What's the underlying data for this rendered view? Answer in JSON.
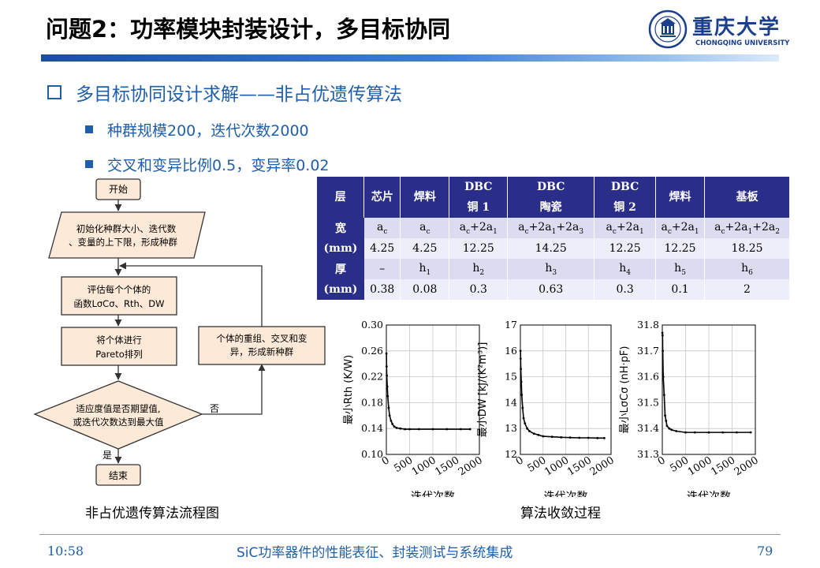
{
  "slide": {
    "title": "问题2：功率模块封装设计，多目标协同",
    "heading": "多目标协同设计求解——非占优遗传算法",
    "bullets": [
      "种群规模200，迭代次数2000",
      "交叉和变异比例0.5，变异率0.02"
    ]
  },
  "logo": {
    "name_cn": "重庆大学",
    "name_en": "CHONGQING UNIVERSITY",
    "emblem_text": "重 庆 大 学"
  },
  "table": {
    "header": [
      "层",
      "芯片",
      "焊料",
      "DBC 铜 1",
      "DBC 陶瓷",
      "DBC 铜 2",
      "焊料",
      "基板"
    ],
    "header_lines": [
      [
        "层"
      ],
      [
        "芯片"
      ],
      [
        "焊料"
      ],
      [
        "DBC",
        "铜 1"
      ],
      [
        "DBC",
        "陶瓷"
      ],
      [
        "DBC",
        "铜 2"
      ],
      [
        "焊料"
      ],
      [
        "基板"
      ]
    ],
    "width_label": [
      "宽",
      "(mm)"
    ],
    "width_formula": [
      "a_c",
      "a_c",
      "a_c+2a_1",
      "a_c+2a_1+2a_3",
      "a_c+2a_1",
      "a_c+2a_1",
      "a_c+2a_1+2a_2"
    ],
    "width_value": [
      "4.25",
      "4.25",
      "12.25",
      "14.25",
      "12.25",
      "12.25",
      "18.25"
    ],
    "thick_label": [
      "厚",
      "(mm)"
    ],
    "thick_symbol": [
      "–",
      "h_1",
      "h_2",
      "h_3",
      "h_4",
      "h_5",
      "h_6"
    ],
    "thick_value": [
      "0.38",
      "0.08",
      "0.3",
      "0.63",
      "0.3",
      "0.1",
      "2"
    ]
  },
  "flowchart": {
    "start": "开始",
    "init": [
      "初始化种群大小、迭代数",
      "、变量的上下限，形成种群"
    ],
    "eval": [
      "评估每个个体的",
      "函数LσCσ、Rth、DW"
    ],
    "sort": [
      "将个体进行",
      "Pareto排列"
    ],
    "decision": [
      "适应度值是否期望值,",
      "或迭代次数达到最大值"
    ],
    "no": "否",
    "yes": "是",
    "regen": [
      "个体的重组、交叉和变",
      "异，形成新种群"
    ],
    "end": "结束",
    "caption": "非占优遗传算法流程图"
  },
  "convergence_caption": "算法收敛过程",
  "chart_data": [
    {
      "type": "scatter",
      "xlabel": "迭代次数",
      "ylabel": "最小R_th (K/W)",
      "xlim": [
        0,
        2000
      ],
      "ylim": [
        0.1,
        0.3
      ],
      "xticks": [
        0,
        500,
        1000,
        1500,
        2000
      ],
      "yticks": [
        0.1,
        0.14,
        0.18,
        0.22,
        0.26,
        0.3
      ],
      "ytick_labels": [
        "0.10",
        "0.14",
        "0.18",
        "0.22",
        "0.26",
        "0.30"
      ],
      "grid": true,
      "x": [
        2,
        5,
        10,
        20,
        30,
        50,
        70,
        100,
        130,
        170,
        220,
        300,
        400,
        500,
        700,
        1000,
        1300,
        1600,
        1800
      ],
      "y": [
        0.256,
        0.236,
        0.222,
        0.205,
        0.19,
        0.172,
        0.16,
        0.152,
        0.147,
        0.143,
        0.141,
        0.14,
        0.139,
        0.139,
        0.139,
        0.139,
        0.139,
        0.139,
        0.139
      ]
    },
    {
      "type": "scatter",
      "xlabel": "迭代次数",
      "ylabel": "最小D_W [kJ/(K²m³)]",
      "xlim": [
        0,
        2000
      ],
      "ylim": [
        12,
        17
      ],
      "xticks": [
        0,
        500,
        1000,
        1500,
        2000
      ],
      "yticks": [
        12,
        13,
        14,
        15,
        16,
        17
      ],
      "ytick_labels": [
        "12",
        "13",
        "14",
        "15",
        "16",
        "17"
      ],
      "grid": true,
      "x": [
        2,
        5,
        10,
        20,
        30,
        50,
        70,
        100,
        150,
        200,
        300,
        400,
        500,
        700,
        900,
        1100,
        1300,
        1500,
        1700,
        1850
      ],
      "y": [
        16.0,
        15.7,
        15.3,
        14.8,
        14.3,
        13.8,
        13.4,
        13.2,
        13.0,
        12.9,
        12.8,
        12.75,
        12.7,
        12.68,
        12.66,
        12.65,
        12.64,
        12.64,
        12.63,
        12.63
      ]
    },
    {
      "type": "scatter",
      "xlabel": "迭代次数",
      "ylabel": "最小LσCσ (nH·pF)",
      "xlim": [
        0,
        2000
      ],
      "ylim": [
        31.3,
        31.8
      ],
      "xticks": [
        0,
        500,
        1000,
        1500,
        2000
      ],
      "yticks": [
        31.3,
        31.4,
        31.5,
        31.6,
        31.7,
        31.8
      ],
      "ytick_labels": [
        "31.3",
        "31.4",
        "31.5",
        "31.6",
        "31.7",
        "31.8"
      ],
      "grid": true,
      "x": [
        2,
        5,
        10,
        20,
        40,
        60,
        80,
        100,
        150,
        200,
        300,
        500,
        700,
        1000,
        1300,
        1600,
        1900
      ],
      "y": [
        31.77,
        31.76,
        31.7,
        31.6,
        31.53,
        31.45,
        31.43,
        31.41,
        31.4,
        31.395,
        31.39,
        31.385,
        31.385,
        31.385,
        31.385,
        31.385,
        31.385
      ]
    }
  ],
  "footer": {
    "time": "10:58",
    "title": "SiC功率器件的性能表征、封装测试与系统集成",
    "page": "79"
  },
  "colors": {
    "accent": "#1f5fa8",
    "table_header": "#2b2e88",
    "flow_box": "#fde9d7"
  }
}
